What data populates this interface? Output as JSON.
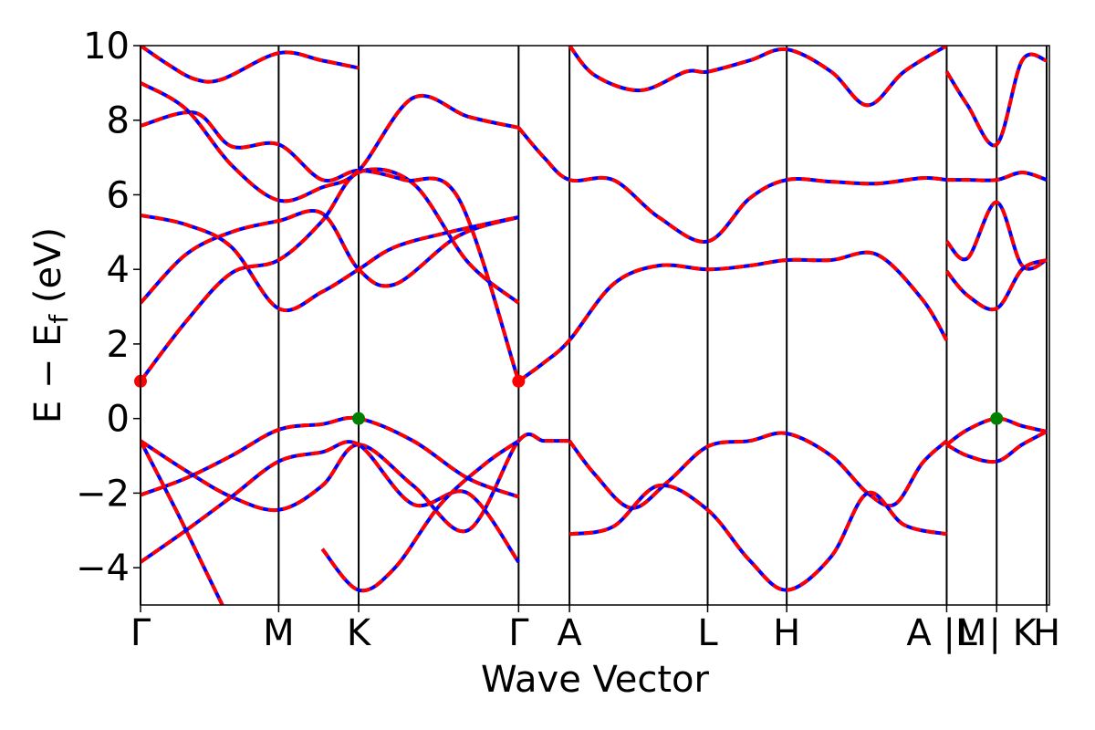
{
  "chart_data": {
    "type": "line",
    "title": "",
    "xlabel": "Wave Vector",
    "ylabel": "E − E",
    "ylabel_subscript": "f",
    "ylabel_unit": " (eV)",
    "ylim": [
      -5,
      10
    ],
    "yticks": [
      -4,
      -2,
      0,
      2,
      4,
      6,
      8,
      10
    ],
    "ytick_labels": [
      "−4",
      "−2",
      "0",
      "2",
      "4",
      "6",
      "8",
      "10"
    ],
    "xlim": [
      0,
      1
    ],
    "kpoints": [
      {
        "label": "Γ",
        "x": 0.0
      },
      {
        "label": "M",
        "x": 0.152
      },
      {
        "label": "K",
        "x": 0.24
      },
      {
        "label": "Γ",
        "x": 0.416
      },
      {
        "label": "A",
        "x": 0.472
      },
      {
        "label": "L",
        "x": 0.624
      },
      {
        "label": "H",
        "x": 0.711
      },
      {
        "label": "A |M",
        "x": 0.887
      },
      {
        "label": "L | K",
        "x": 0.942
      },
      {
        "label": "H",
        "x": 0.997
      }
    ],
    "kpoint_lines": [
      0.0,
      0.152,
      0.24,
      0.416,
      0.472,
      0.624,
      0.711,
      0.887,
      0.942,
      0.997
    ],
    "colors": {
      "primary": "#0000ff",
      "overlay": "#ff0000",
      "vbm_marker": "#008000",
      "cbm_marker": "#ff0000"
    },
    "markers": [
      {
        "name": "VBM",
        "x": 0.24,
        "y": 0.0,
        "color": "#008000"
      },
      {
        "name": "VBM",
        "x": 0.942,
        "y": 0.0,
        "color": "#008000"
      },
      {
        "name": "CBM",
        "x": 0.0,
        "y": 1.0,
        "color": "#ff0000"
      },
      {
        "name": "CBM",
        "x": 0.416,
        "y": 1.0,
        "color": "#ff0000"
      }
    ],
    "series": [
      {
        "x": [
          0.0,
          0.05,
          0.1,
          0.152,
          0.2,
          0.24,
          0.3,
          0.36,
          0.416
        ],
        "y": [
          1.0,
          2.6,
          3.9,
          4.25,
          5.3,
          6.6,
          6.3,
          4.2,
          3.1
        ]
      },
      {
        "x": [
          0.0,
          0.05,
          0.1,
          0.152,
          0.2,
          0.24,
          0.28,
          0.35,
          0.416
        ],
        "y": [
          3.1,
          4.4,
          5.0,
          5.3,
          5.5,
          4.0,
          3.6,
          4.9,
          5.4
        ]
      },
      {
        "x": [
          0.0,
          0.05,
          0.1,
          0.152,
          0.2,
          0.24,
          0.28,
          0.34,
          0.416
        ],
        "y": [
          5.45,
          5.2,
          4.6,
          2.95,
          3.4,
          4.0,
          4.6,
          5.0,
          5.4
        ]
      },
      {
        "x": [
          0.0,
          0.06,
          0.1,
          0.152,
          0.2,
          0.24,
          0.29,
          0.35,
          0.416
        ],
        "y": [
          7.85,
          8.2,
          7.3,
          7.35,
          6.4,
          6.65,
          6.4,
          5.9,
          1.0
        ]
      },
      {
        "x": [
          0.0,
          0.05,
          0.1,
          0.152,
          0.2,
          0.24,
          0.3,
          0.36,
          0.416
        ],
        "y": [
          9.0,
          8.3,
          6.8,
          5.85,
          6.2,
          6.65,
          8.6,
          8.1,
          7.8
        ]
      },
      {
        "x": [
          0.0,
          0.03,
          0.06,
          0.09,
          0.152,
          0.2,
          0.24
        ],
        "y": [
          10.0,
          9.5,
          9.1,
          9.1,
          9.8,
          9.6,
          9.4
        ]
      },
      {
        "x": [
          0.416,
          0.444,
          0.472,
          0.52,
          0.57,
          0.624,
          0.67,
          0.711,
          0.76,
          0.81,
          0.86,
          0.887
        ],
        "y": [
          1.0,
          1.5,
          2.1,
          3.6,
          4.1,
          4.0,
          4.1,
          4.25,
          4.25,
          4.4,
          3.2,
          2.1
        ]
      },
      {
        "x": [
          0.416,
          0.444,
          0.472,
          0.52,
          0.57,
          0.624,
          0.67,
          0.711,
          0.76,
          0.81,
          0.86,
          0.887
        ],
        "y": [
          7.8,
          7.0,
          6.4,
          6.4,
          5.4,
          4.75,
          5.9,
          6.4,
          6.35,
          6.3,
          6.45,
          6.4
        ]
      },
      {
        "x": [
          0.472,
          0.5,
          0.55,
          0.6,
          0.624,
          0.67,
          0.711,
          0.76,
          0.8,
          0.84,
          0.887
        ],
        "y": [
          10.0,
          9.2,
          8.8,
          9.3,
          9.3,
          9.6,
          9.9,
          9.3,
          8.4,
          9.3,
          10.0
        ]
      },
      {
        "x": [
          0.0,
          0.05,
          0.1,
          0.152,
          0.2,
          0.24,
          0.3,
          0.36,
          0.416,
          0.444,
          0.472
        ],
        "y": [
          -0.6,
          -1.4,
          -2.1,
          -2.45,
          -1.8,
          -0.7,
          -1.8,
          -3.0,
          -0.6,
          -0.6,
          -0.6
        ]
      },
      {
        "x": [
          0.0,
          0.05,
          0.1,
          0.152,
          0.2,
          0.24,
          0.3,
          0.36,
          0.416
        ],
        "y": [
          -2.05,
          -1.6,
          -1.0,
          -0.3,
          -0.15,
          0.0,
          -0.6,
          -1.6,
          -2.1
        ]
      },
      {
        "x": [
          0.0,
          0.05,
          0.1,
          0.152,
          0.2,
          0.24,
          0.3,
          0.36,
          0.416
        ],
        "y": [
          -3.85,
          -3.0,
          -2.1,
          -1.15,
          -0.9,
          -0.7,
          -2.3,
          -2.0,
          -3.85
        ]
      },
      {
        "x": [
          0.0,
          0.04,
          0.07,
          0.09
        ],
        "y": [
          -0.6,
          -2.5,
          -4.0,
          -5.0
        ]
      },
      {
        "x": [
          0.2,
          0.24,
          0.28,
          0.33,
          0.38,
          0.416
        ],
        "y": [
          -3.5,
          -4.6,
          -4.0,
          -2.3,
          -1.2,
          -0.6
        ]
      },
      {
        "x": [
          0.472,
          0.5,
          0.54,
          0.58,
          0.624,
          0.67,
          0.711,
          0.76,
          0.8,
          0.83,
          0.86,
          0.887
        ],
        "y": [
          -0.6,
          -1.5,
          -2.4,
          -1.7,
          -0.75,
          -0.6,
          -0.4,
          -1.0,
          -2.0,
          -2.3,
          -1.2,
          -0.6
        ]
      },
      {
        "x": [
          0.472,
          0.52,
          0.57,
          0.624,
          0.67,
          0.711,
          0.76,
          0.8,
          0.84,
          0.887
        ],
        "y": [
          -3.1,
          -2.9,
          -1.8,
          -2.45,
          -3.8,
          -4.6,
          -3.7,
          -2.0,
          -2.85,
          -3.1
        ]
      },
      {
        "x": [
          0.887,
          0.91,
          0.942,
          0.97,
          0.997
        ],
        "y": [
          -0.7,
          -0.3,
          0.0,
          -0.2,
          -0.35
        ]
      },
      {
        "x": [
          0.887,
          0.91,
          0.942,
          0.97,
          0.997
        ],
        "y": [
          -0.7,
          -1.0,
          -1.15,
          -0.7,
          -0.35
        ]
      },
      {
        "x": [
          0.887,
          0.91,
          0.942,
          0.97,
          0.997
        ],
        "y": [
          6.4,
          6.4,
          6.4,
          6.6,
          6.4
        ]
      },
      {
        "x": [
          0.887,
          0.91,
          0.942,
          0.97,
          0.997
        ],
        "y": [
          4.75,
          4.3,
          5.8,
          4.1,
          4.25
        ]
      },
      {
        "x": [
          0.887,
          0.91,
          0.942,
          0.97,
          0.997
        ],
        "y": [
          3.95,
          3.3,
          2.95,
          4.0,
          4.25
        ]
      },
      {
        "x": [
          0.887,
          0.91,
          0.942,
          0.97,
          0.997
        ],
        "y": [
          9.3,
          8.4,
          7.35,
          9.6,
          9.6
        ]
      }
    ]
  }
}
